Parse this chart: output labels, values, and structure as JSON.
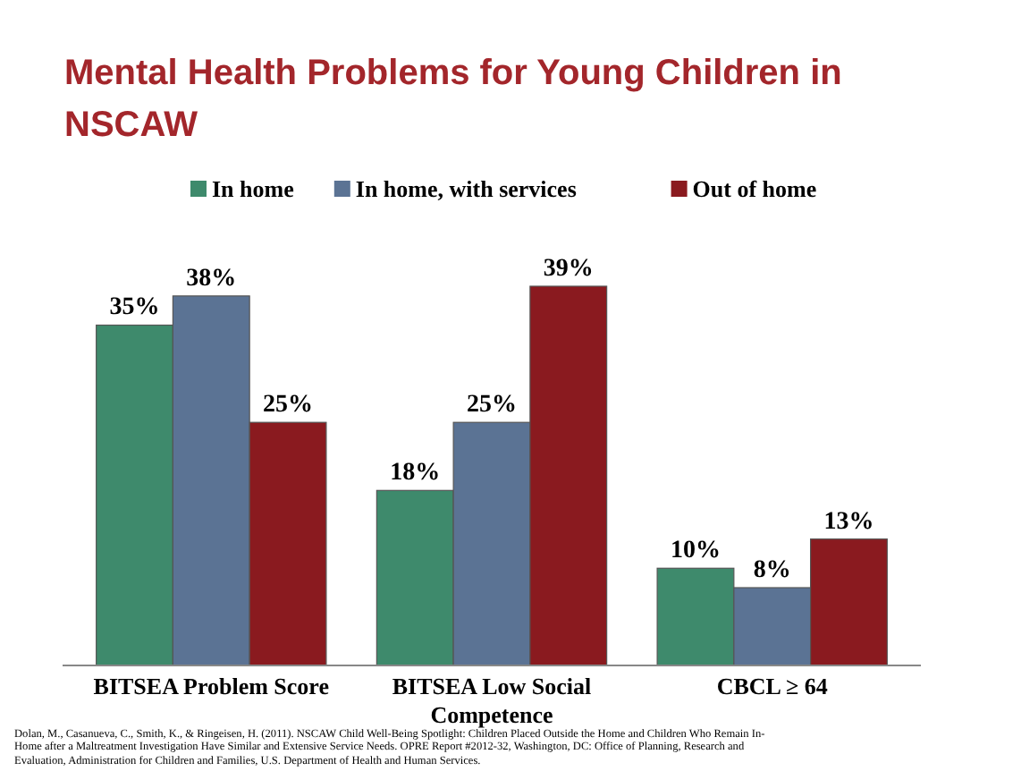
{
  "chart_data": {
    "type": "bar",
    "title": "Mental Health Problems for Young Children in NSCAW",
    "categories": [
      "BITSEA Problem Score",
      "BITSEA Low Social Competence",
      "CBCL ≥ 64"
    ],
    "series": [
      {
        "name": "In home",
        "color": "#3e8a6c",
        "values": [
          35,
          18,
          10
        ],
        "value_labels": [
          "35%",
          "18%",
          "10%"
        ]
      },
      {
        "name": "In home, with services",
        "color": "#5b7394",
        "values": [
          38,
          25,
          8
        ],
        "value_labels": [
          "38%",
          "25%",
          "8%"
        ]
      },
      {
        "name": "Out of home",
        "color": "#8a1a1f",
        "values": [
          25,
          39,
          13
        ],
        "value_labels": [
          "25%",
          "39%",
          "13%"
        ]
      }
    ],
    "legend": "top",
    "annotations": [
      "Dolan, M., Casanueva, C., Smith, K., & Ringeisen, H. (2011). NSCAW Child Well-Being Spotlight: Children Placed Outside the Home and Children Who Remain In-Home after a Maltreatment Investigation Have Similar and Extensive Service Needs. OPRE Report #2012-32, Washington, DC: Office of Planning, Research and Evaluation, Administration for Children and Families, U.S. Department of Health and Human Services."
    ]
  }
}
